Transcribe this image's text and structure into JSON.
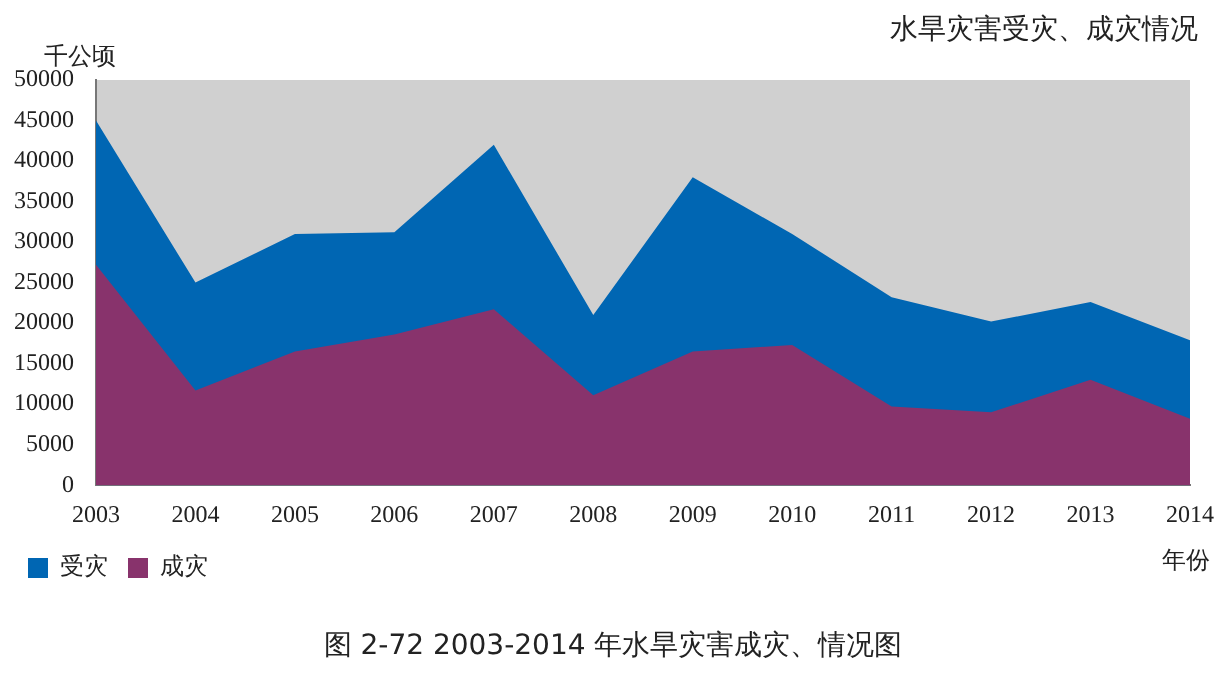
{
  "chart_data": {
    "type": "area",
    "title": "水旱灾害受灾、成灾情况",
    "ylabel": "千公顷",
    "xlabel": "年份",
    "categories": [
      "2003",
      "2004",
      "2005",
      "2006",
      "2007",
      "2008",
      "2009",
      "2010",
      "2011",
      "2012",
      "2013",
      "2014"
    ],
    "series": [
      {
        "name": "受灾",
        "color": "#0066b3",
        "values": [
          45000,
          25000,
          31000,
          31200,
          42000,
          21000,
          38000,
          31000,
          23200,
          20200,
          22600,
          17900
        ]
      },
      {
        "name": "成灾",
        "color": "#88336c",
        "values": [
          27200,
          11700,
          16500,
          18600,
          21700,
          11100,
          16500,
          17300,
          9700,
          9000,
          13000,
          8200
        ]
      }
    ],
    "ylim": [
      0,
      50000
    ],
    "yticks": [
      0,
      5000,
      10000,
      15000,
      20000,
      25000,
      30000,
      35000,
      40000,
      45000,
      50000
    ],
    "grid": false,
    "legend": "bottom left",
    "annotations": [
      "图 2-72 2003-2014 年水旱灾害成灾、情况图"
    ]
  }
}
